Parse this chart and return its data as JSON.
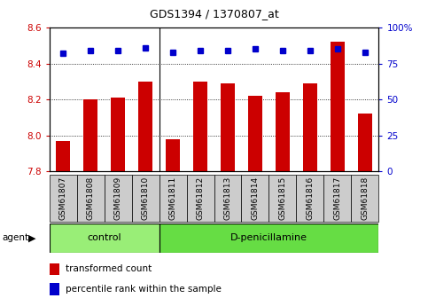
{
  "title": "GDS1394 / 1370807_at",
  "samples": [
    "GSM61807",
    "GSM61808",
    "GSM61809",
    "GSM61810",
    "GSM61811",
    "GSM61812",
    "GSM61813",
    "GSM61814",
    "GSM61815",
    "GSM61816",
    "GSM61817",
    "GSM61818"
  ],
  "bar_values": [
    7.97,
    8.2,
    8.21,
    8.3,
    7.98,
    8.3,
    8.29,
    8.22,
    8.24,
    8.29,
    8.52,
    8.12
  ],
  "dot_values": [
    82,
    84,
    84,
    86,
    83,
    84,
    84,
    85,
    84,
    84,
    85,
    83
  ],
  "ylim_left": [
    7.8,
    8.6
  ],
  "ylim_right": [
    0,
    100
  ],
  "yticks_left": [
    7.8,
    8.0,
    8.2,
    8.4,
    8.6
  ],
  "yticks_right": [
    0,
    25,
    50,
    75,
    100
  ],
  "bar_color": "#cc0000",
  "dot_color": "#0000cc",
  "bar_bottom": 7.8,
  "control_color": "#99ee77",
  "dpenicil_color": "#66dd44",
  "tick_box_color": "#cccccc",
  "agent_label": "agent",
  "legend_bar_label": "transformed count",
  "legend_dot_label": "percentile rank within the sample",
  "tick_label_color_left": "#cc0000",
  "tick_label_color_right": "#0000cc",
  "background_color": "#ffffff",
  "n_control": 4,
  "n_samples": 12
}
